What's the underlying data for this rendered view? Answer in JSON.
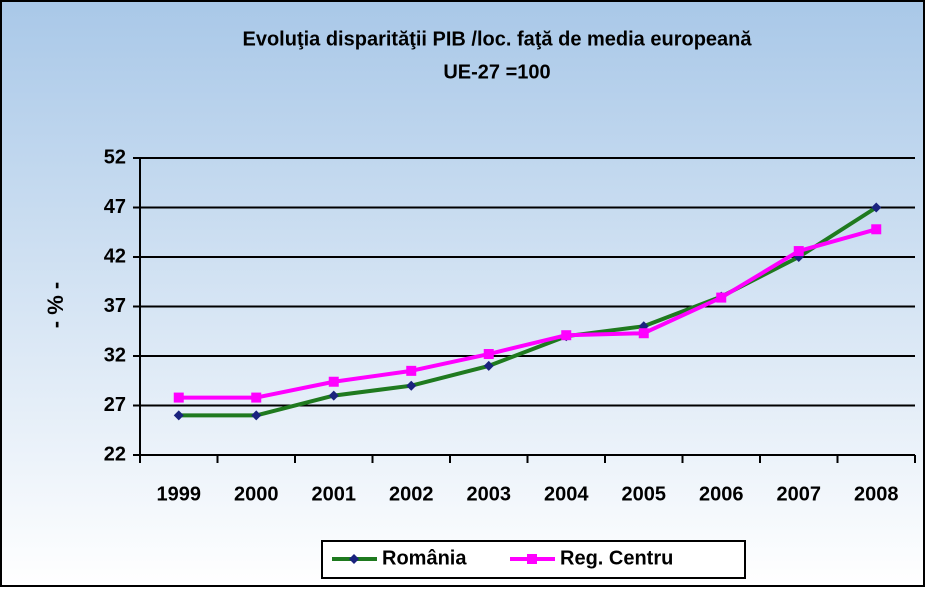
{
  "chart_data": {
    "type": "line",
    "title": "Evoluţia disparităţii PIB /loc. faţă de media europeană",
    "subtitle": "UE-27 =100",
    "y_label": "- % -",
    "categories": [
      "1999",
      "2000",
      "2001",
      "2002",
      "2003",
      "2004",
      "2005",
      "2006",
      "2007",
      "2008"
    ],
    "series": [
      {
        "name": "România",
        "color": "#1f7a1f",
        "marker_color": "#1a237e",
        "marker": "diamond",
        "values": [
          26,
          26,
          28,
          29,
          31,
          34,
          35,
          38,
          42,
          47
        ]
      },
      {
        "name": "Reg. Centru",
        "color": "#ff00ff",
        "marker_color": "#ff00ff",
        "marker": "square",
        "values": [
          27.8,
          27.8,
          29.4,
          30.5,
          32.2,
          34.1,
          34.3,
          37.9,
          42.6,
          44.8
        ]
      }
    ],
    "ylim": [
      22,
      52
    ],
    "yticks": [
      22,
      27,
      32,
      37,
      42,
      47,
      52
    ],
    "grid": true,
    "legend": "bottom"
  }
}
